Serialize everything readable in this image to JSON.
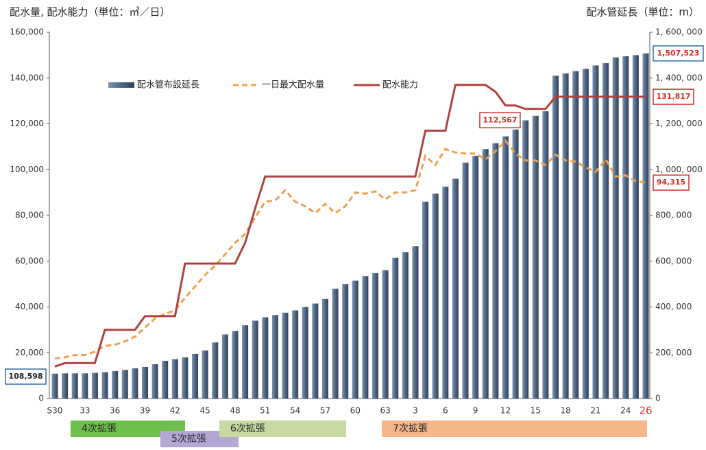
{
  "chart_data": {
    "type": "bar_line",
    "title_left": "配水量, 配水能力（単位：㎥／日）",
    "title_right": "配水管延長（単位：m）",
    "categories": [
      "S30",
      null,
      null,
      "33",
      null,
      null,
      "36",
      null,
      null,
      "39",
      null,
      null,
      "42",
      null,
      null,
      "45",
      null,
      null,
      "48",
      null,
      null,
      "51",
      null,
      null,
      "54",
      null,
      null,
      "57",
      null,
      null,
      "60",
      null,
      null,
      "63",
      null,
      null,
      "3",
      null,
      null,
      "6",
      null,
      null,
      "9",
      null,
      null,
      "12",
      null,
      null,
      "15",
      null,
      null,
      "18",
      null,
      null,
      "21",
      null,
      null,
      "24",
      null,
      "26"
    ],
    "ylim": [
      0,
      160000
    ],
    "yticks": [
      0,
      {
        "value": 20000,
        "label": "20,000"
      },
      {
        "value": 40000,
        "label": "40,000"
      },
      {
        "value": 60000,
        "label": "60,000"
      },
      {
        "value": 80000,
        "label": "80,000"
      },
      {
        "value": 100000,
        "label": "100,000"
      },
      {
        "value": 120000,
        "label": "120,000"
      },
      {
        "value": 140000,
        "label": "140,000"
      },
      {
        "value": 160000,
        "label": "160,000"
      }
    ],
    "y2lim": [
      0,
      1600000
    ],
    "y2ticks": [
      0,
      {
        "value": 200000,
        "label": "200, 000"
      },
      {
        "value": 400000,
        "label": "400, 000"
      },
      {
        "value": 600000,
        "label": "600, 000"
      },
      {
        "value": 800000,
        "label": "800, 000"
      },
      {
        "value": 1000000,
        "label": "1, 000, 000"
      },
      {
        "value": 1200000,
        "label": "1, 200, 000"
      },
      {
        "value": 1400000,
        "label": "1, 400, 000"
      },
      {
        "value": 1600000,
        "label": "1, 600, 000"
      }
    ],
    "series": [
      {
        "name": "配水管布設延長",
        "kind": "bar",
        "axis": "y2",
        "color": "#4f6785",
        "label_color": "#2f6ea3",
        "values": [
          108598,
          110000,
          110000,
          110000,
          112000,
          115000,
          120000,
          125000,
          132000,
          138000,
          150000,
          165000,
          172000,
          180000,
          195000,
          210000,
          245000,
          280000,
          295000,
          320000,
          340000,
          355000,
          365000,
          375000,
          385000,
          400000,
          415000,
          435000,
          480000,
          500000,
          515000,
          535000,
          548000,
          560000,
          615000,
          640000,
          665000,
          860000,
          895000,
          925000,
          960000,
          1030000,
          1060000,
          1090000,
          1115000,
          1145000,
          1175000,
          1215000,
          1235000,
          1255000,
          1410000,
          1420000,
          1430000,
          1440000,
          1455000,
          1465000,
          1490000,
          1495000,
          1500000,
          1507523
        ],
        "value_labels": [
          "108,598",
          null,
          null,
          null,
          null,
          null,
          null,
          null,
          null,
          null,
          null,
          null,
          null,
          null,
          null,
          null,
          null,
          null,
          null,
          null,
          null,
          null,
          null,
          null,
          null,
          null,
          null,
          null,
          null,
          null,
          null,
          null,
          null,
          null,
          null,
          null,
          null,
          null,
          null,
          null,
          null,
          null,
          null,
          null,
          null,
          null,
          null,
          null,
          null,
          null,
          null,
          null,
          null,
          null,
          null,
          null,
          null,
          null,
          null,
          "1,507,523"
        ]
      },
      {
        "name": "一日最大配水量",
        "kind": "dashed",
        "axis": "y",
        "color": "#f0a04b",
        "label_color": "#d0302a",
        "values": [
          17500,
          18000,
          19000,
          19000,
          20500,
          23000,
          23500,
          25000,
          27000,
          31000,
          35000,
          37000,
          38500,
          44000,
          49000,
          54000,
          58000,
          63000,
          68000,
          72000,
          79000,
          86000,
          86500,
          91000,
          86000,
          84000,
          81000,
          85000,
          81000,
          84000,
          90000,
          89500,
          90500,
          87000,
          90000,
          90000,
          91000,
          106000,
          102000,
          109000,
          107500,
          107000,
          107000,
          104500,
          108000,
          112567,
          107000,
          104000,
          104000,
          102000,
          106500,
          104000,
          103500,
          101000,
          99000,
          104500,
          97000,
          97500,
          95000,
          94315
        ],
        "value_labels": [
          null,
          null,
          null,
          null,
          null,
          null,
          null,
          null,
          null,
          null,
          null,
          null,
          null,
          null,
          null,
          null,
          null,
          null,
          null,
          null,
          null,
          null,
          null,
          null,
          null,
          null,
          null,
          null,
          null,
          null,
          null,
          null,
          null,
          null,
          null,
          null,
          null,
          null,
          null,
          null,
          null,
          null,
          null,
          null,
          null,
          "112,567",
          null,
          null,
          null,
          null,
          null,
          null,
          null,
          null,
          null,
          null,
          null,
          null,
          null,
          "94,315"
        ]
      },
      {
        "name": "配水能力",
        "kind": "solid",
        "axis": "y",
        "color": "#b0413e",
        "label_color": "#d0302a",
        "values": [
          14000,
          15500,
          15500,
          15500,
          15500,
          30000,
          30000,
          30000,
          30000,
          36000,
          36000,
          36000,
          36000,
          59000,
          59000,
          59000,
          59000,
          59000,
          59000,
          68000,
          83000,
          97000,
          97000,
          97000,
          97000,
          97000,
          97000,
          97000,
          97000,
          97000,
          97000,
          97000,
          97000,
          97000,
          97000,
          97000,
          97000,
          117000,
          117000,
          117000,
          137000,
          137000,
          137000,
          137000,
          134000,
          128000,
          128000,
          126500,
          126500,
          126500,
          131817,
          131817,
          131817,
          131817,
          131817,
          131817,
          131817,
          131817,
          131817,
          131817
        ],
        "value_labels": [
          null,
          null,
          null,
          null,
          null,
          null,
          null,
          null,
          null,
          null,
          null,
          null,
          null,
          null,
          null,
          null,
          null,
          null,
          null,
          null,
          null,
          null,
          null,
          null,
          null,
          null,
          null,
          null,
          null,
          null,
          null,
          null,
          null,
          null,
          null,
          null,
          null,
          null,
          null,
          null,
          null,
          null,
          null,
          null,
          null,
          null,
          null,
          null,
          null,
          null,
          null,
          null,
          null,
          null,
          null,
          null,
          null,
          null,
          null,
          "131,817"
        ]
      }
    ],
    "phases": [
      {
        "label": "4次拡張",
        "color": "#6fbf4d"
      },
      {
        "label": "5次拡張",
        "color": "#b4a7d6"
      },
      {
        "label": "6次拡張",
        "color": "#c5d9a1"
      },
      {
        "label": "7次拡張",
        "color": "#f5b78a"
      }
    ]
  }
}
